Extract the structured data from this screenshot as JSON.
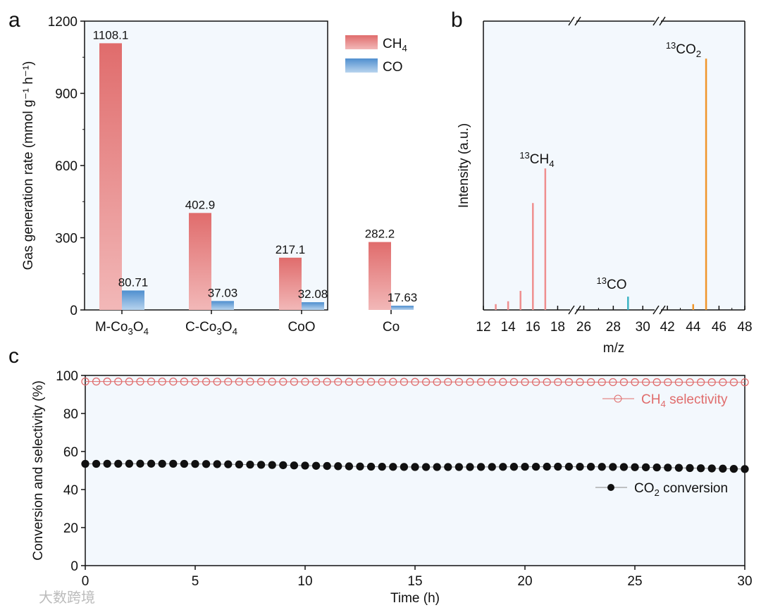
{
  "chart_data": [
    {
      "panel": "a",
      "type": "bar",
      "categories": [
        "M-Co3O4",
        "C-Co3O4",
        "CoO",
        "Co"
      ],
      "category_labels": [
        [
          "M-Co",
          "3",
          "O",
          "4"
        ],
        [
          "C-Co",
          "3",
          "O",
          "4"
        ],
        [
          "CoO"
        ],
        [
          "Co"
        ]
      ],
      "series": [
        {
          "name": "CH4",
          "values": [
            1108.1,
            402.9,
            217.1,
            282.2
          ],
          "color": "#e06c6c",
          "labels": [
            "1108.1",
            "402.9",
            "217.1",
            "282.2"
          ]
        },
        {
          "name": "CO",
          "values": [
            80.71,
            37.03,
            32.08,
            17.63
          ],
          "color": "#4f8fcf",
          "labels": [
            "80.71",
            "37.03",
            "32.08",
            "17.63"
          ]
        }
      ],
      "ylabel": "Gas generation rate (mmol g⁻¹ h⁻¹)",
      "ylim": [
        0,
        1200
      ],
      "yticks": [
        "0",
        "300",
        "600",
        "900",
        "1200"
      ],
      "legend": "top-right"
    },
    {
      "panel": "b",
      "type": "bar",
      "xlabel": "m/z",
      "ylabel": "Intensity (a.u.)",
      "xticks": [
        "12",
        "14",
        "16",
        "18",
        "26",
        "28",
        "30",
        "42",
        "44",
        "46",
        "48"
      ],
      "peaks": [
        {
          "x": 13,
          "y": 0.02,
          "color": "#ef8f8f"
        },
        {
          "x": 14,
          "y": 0.03,
          "color": "#ef8f8f"
        },
        {
          "x": 15,
          "y": 0.066,
          "color": "#ef8f8f"
        },
        {
          "x": 16,
          "y": 0.37,
          "color": "#ef8f8f"
        },
        {
          "x": 17,
          "y": 0.49,
          "color": "#ef8f8f"
        },
        {
          "x": 29,
          "y": 0.046,
          "color": "#3bb3c3"
        },
        {
          "x": 44,
          "y": 0.02,
          "color": "#f0962a"
        },
        {
          "x": 45,
          "y": 0.87,
          "color": "#f0962a"
        }
      ],
      "annotations": [
        {
          "text": "13",
          "main": "CH",
          "sub": "4"
        },
        {
          "text": "13",
          "main": "CO",
          "sub": ""
        },
        {
          "text": "13",
          "main": "CO",
          "sub": "2"
        }
      ],
      "axis_breaks": [
        [
          18,
          26
        ],
        [
          30,
          42
        ]
      ]
    },
    {
      "panel": "c",
      "type": "scatter",
      "xlabel": "Time (h)",
      "ylabel": "Conversion and selectivity (%)",
      "xlim": [
        0,
        30
      ],
      "ylim": [
        0,
        100
      ],
      "xticks": [
        "0",
        "5",
        "10",
        "15",
        "20",
        "25",
        "30"
      ],
      "yticks": [
        "0",
        "20",
        "40",
        "60",
        "80",
        "100"
      ],
      "series": [
        {
          "name": "CH4 selectivity",
          "legend": [
            "CH",
            "4",
            " selectivity"
          ],
          "color": "#e06c6c",
          "start": 96.8,
          "end": 96.4
        },
        {
          "name": "CO2 conversion",
          "legend": [
            "CO",
            "2",
            " conversion"
          ],
          "color": "#111111",
          "start": 53.5,
          "end": 51.0
        }
      ],
      "points_per_series": 61
    }
  ],
  "panel_labels": [
    "a",
    "b",
    "c"
  ],
  "watermark": "大数跨境"
}
